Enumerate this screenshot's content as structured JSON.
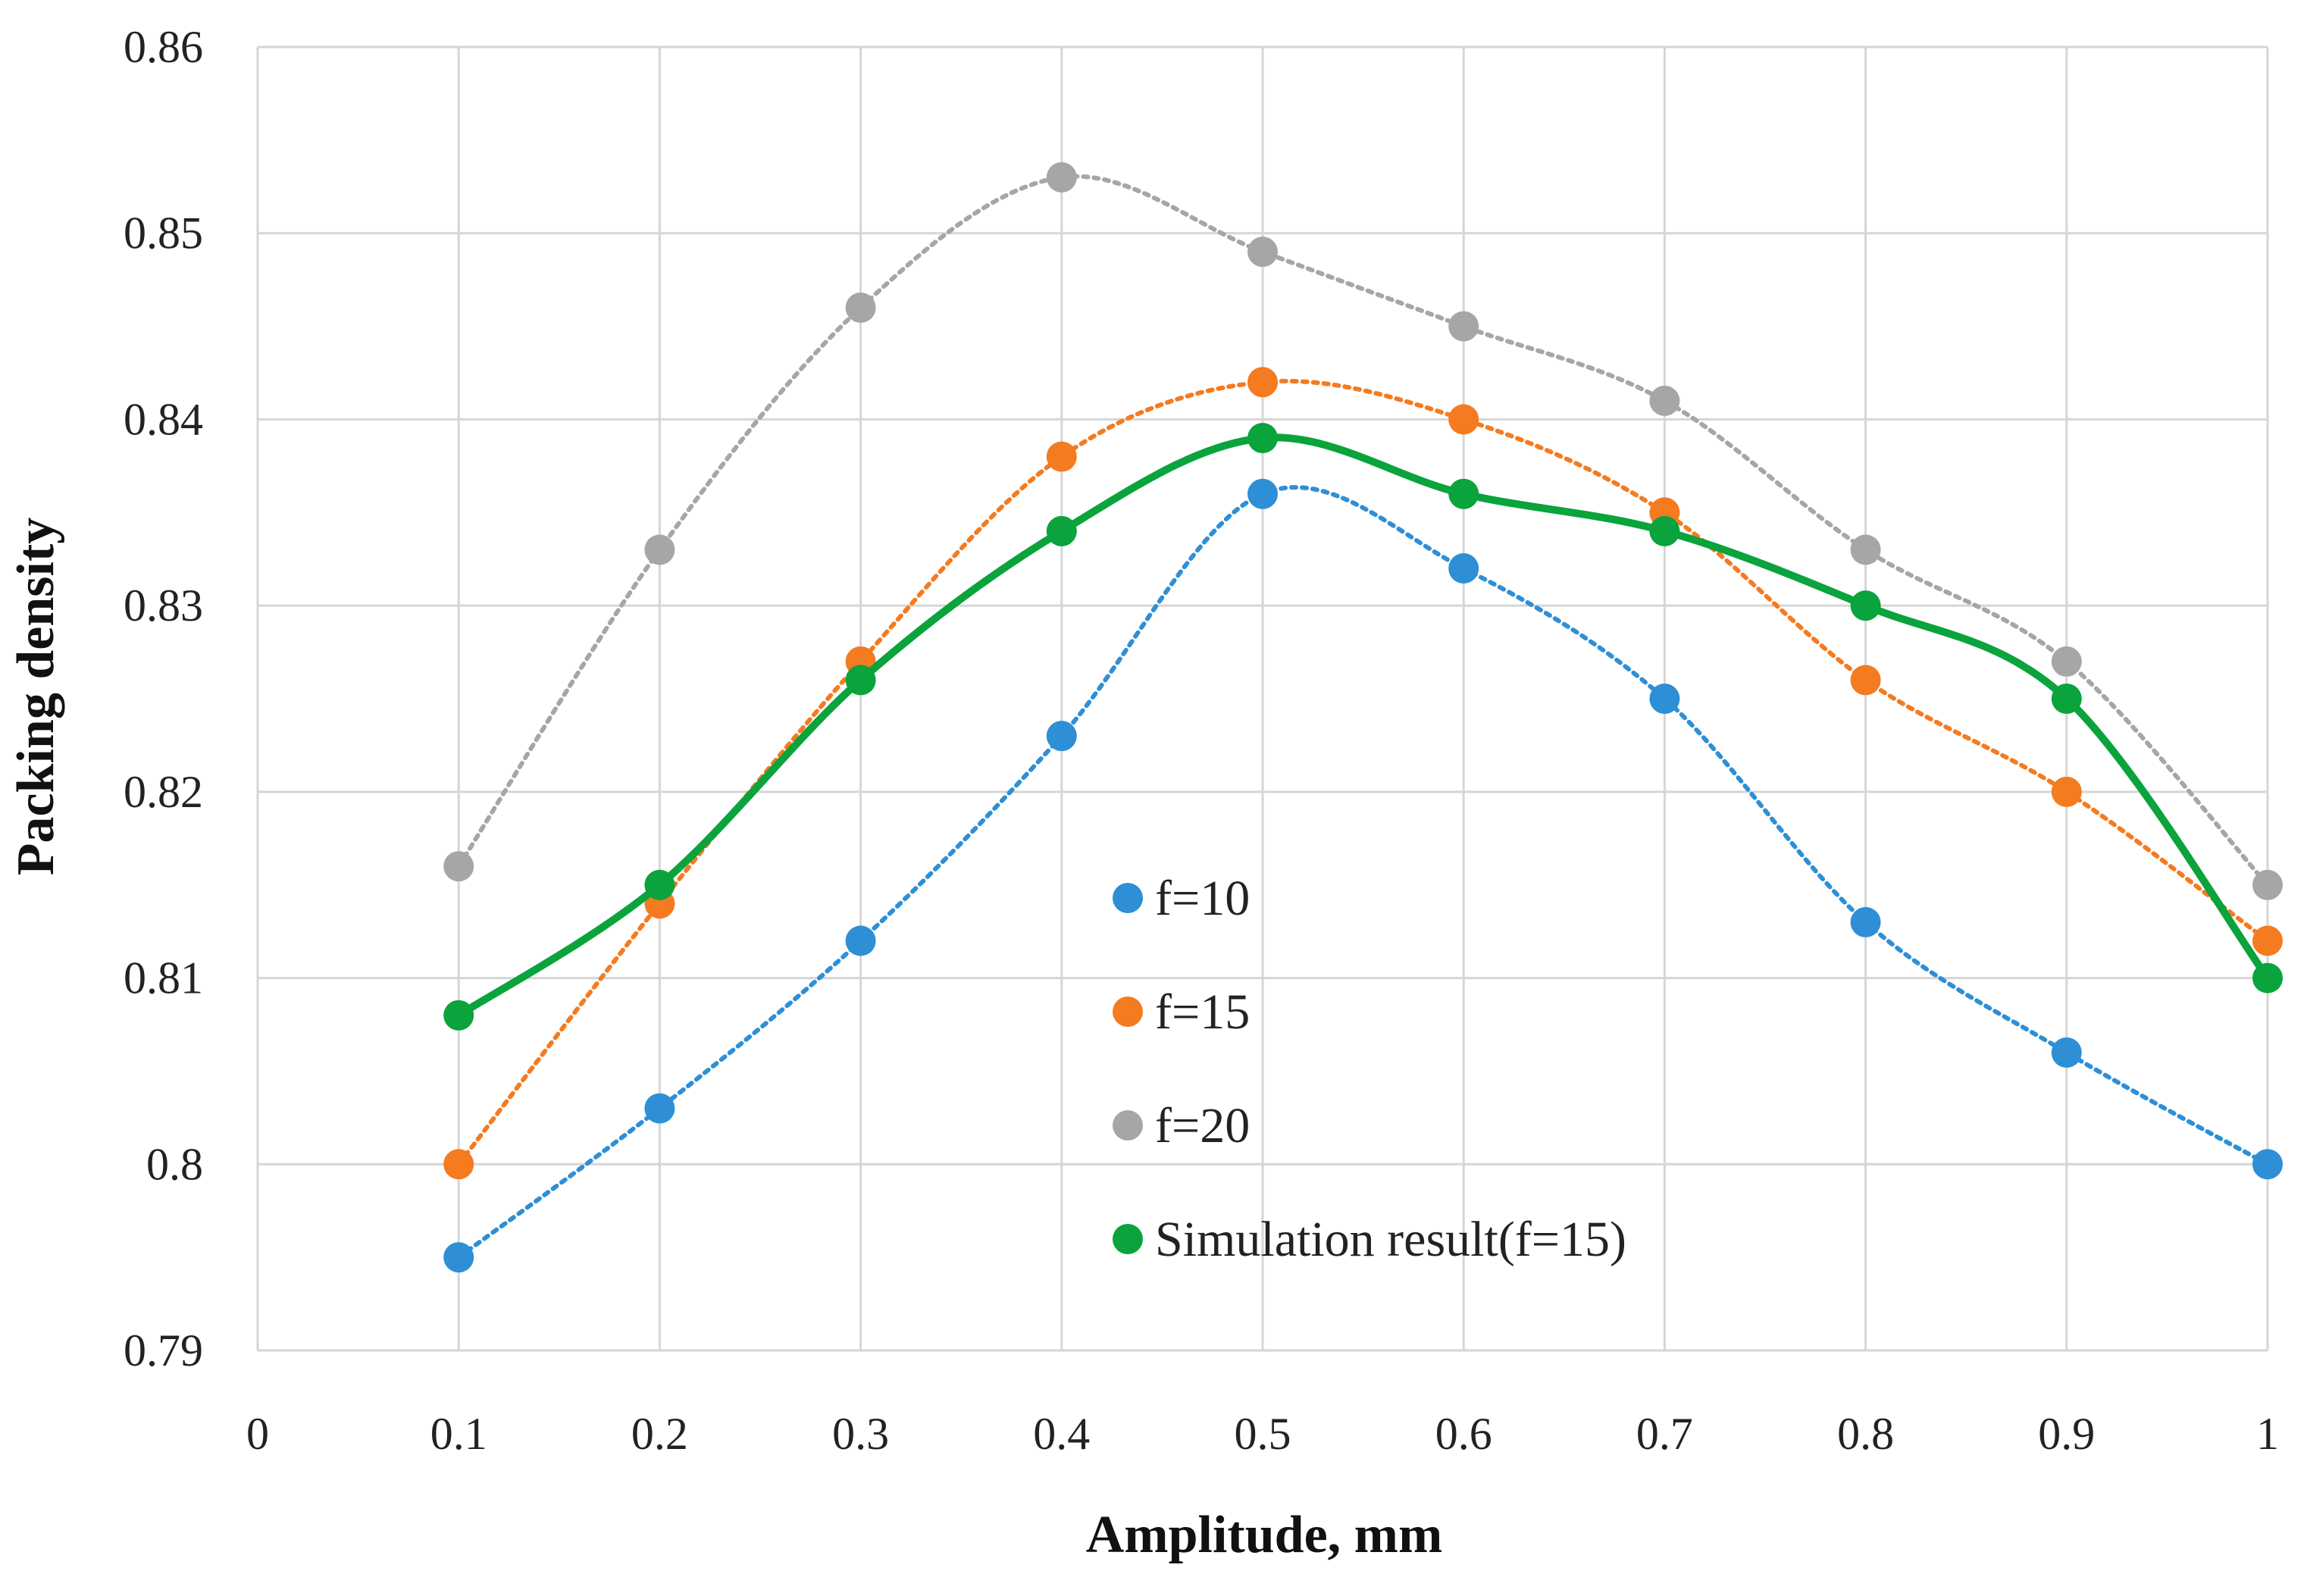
{
  "chart_data": {
    "type": "scatter",
    "title": "",
    "xlabel": "Amplitude, mm",
    "ylabel": "Packing density",
    "xlim": [
      0,
      1
    ],
    "ylim": [
      0.79,
      0.86
    ],
    "x_ticks": [
      0,
      0.1,
      0.2,
      0.3,
      0.4,
      0.5,
      0.6,
      0.7,
      0.8,
      0.9,
      1
    ],
    "x_tick_labels": [
      "0",
      "0.1",
      "0.2",
      "0.3",
      "0.4",
      "0.5",
      "0.6",
      "0.7",
      "0.8",
      "0.9",
      "1"
    ],
    "y_ticks": [
      0.79,
      0.8,
      0.81,
      0.82,
      0.83,
      0.84,
      0.85,
      0.86
    ],
    "y_tick_labels": [
      "0.79",
      "0.8",
      "0.81",
      "0.82",
      "0.83",
      "0.84",
      "0.85",
      "0.86"
    ],
    "grid": true,
    "legend_position": "center",
    "series": [
      {
        "name": "f=10",
        "color": "#2e8fd6",
        "line_style": "dotted",
        "x": [
          0.1,
          0.2,
          0.3,
          0.4,
          0.5,
          0.6,
          0.7,
          0.8,
          0.9,
          1
        ],
        "values": [
          0.795,
          0.803,
          0.812,
          0.823,
          0.836,
          0.832,
          0.825,
          0.813,
          0.806,
          0.8
        ]
      },
      {
        "name": "f=15",
        "color": "#f47b20",
        "line_style": "dotted",
        "x": [
          0.1,
          0.2,
          0.3,
          0.4,
          0.5,
          0.6,
          0.7,
          0.8,
          0.9,
          1
        ],
        "values": [
          0.8,
          0.814,
          0.827,
          0.838,
          0.842,
          0.84,
          0.835,
          0.826,
          0.82,
          0.812
        ]
      },
      {
        "name": "f=20",
        "color": "#a6a6a6",
        "line_style": "dotted",
        "x": [
          0.1,
          0.2,
          0.3,
          0.4,
          0.5,
          0.6,
          0.7,
          0.8,
          0.9,
          1
        ],
        "values": [
          0.816,
          0.833,
          0.846,
          0.853,
          0.849,
          0.845,
          0.841,
          0.833,
          0.827,
          0.815
        ]
      },
      {
        "name": "Simulation result(f=15)",
        "color": "#0aa33c",
        "line_style": "solid",
        "x": [
          0.1,
          0.2,
          0.3,
          0.4,
          0.5,
          0.6,
          0.7,
          0.8,
          0.9,
          1
        ],
        "values": [
          0.808,
          0.815,
          0.826,
          0.834,
          0.839,
          0.836,
          0.834,
          0.83,
          0.825,
          0.81
        ]
      }
    ]
  }
}
